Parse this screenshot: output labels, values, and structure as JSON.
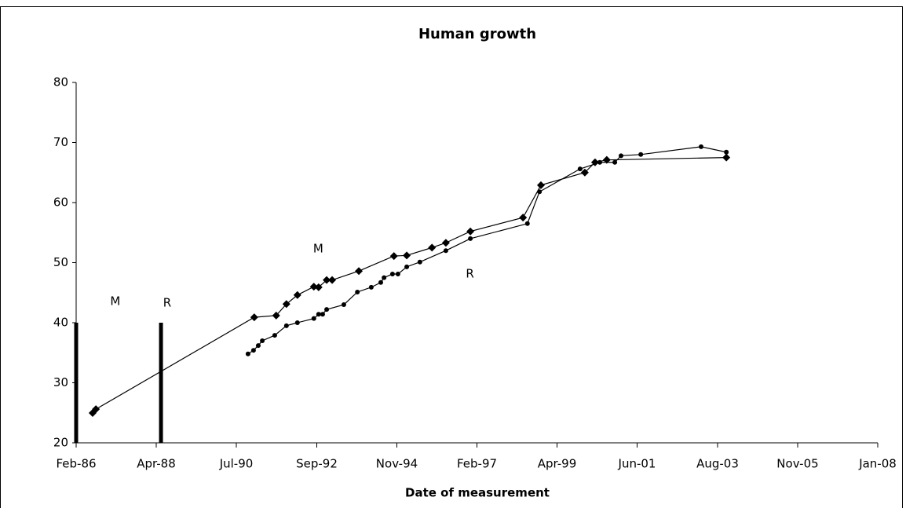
{
  "chart_data": {
    "type": "line",
    "title": "Human growth",
    "x_label": "Date of measurement",
    "xlim": [
      1986.08,
      2008.0
    ],
    "xticks": [
      {
        "value": 1986.08,
        "label": "Feb-86"
      },
      {
        "value": 1988.27,
        "label": "Apr-88"
      },
      {
        "value": 1990.46,
        "label": "Jul-90"
      },
      {
        "value": 1992.66,
        "label": "Sep-92"
      },
      {
        "value": 1994.85,
        "label": "Nov-94"
      },
      {
        "value": 1997.04,
        "label": "Feb-97"
      },
      {
        "value": 1999.23,
        "label": "Apr-99"
      },
      {
        "value": 2001.42,
        "label": "Jun-01"
      },
      {
        "value": 2003.62,
        "label": "Aug-03"
      },
      {
        "value": 2005.81,
        "label": "Nov-05"
      },
      {
        "value": 2008.0,
        "label": "Jan-08"
      }
    ],
    "ylim": [
      20,
      80
    ],
    "yticks": [
      20,
      30,
      40,
      50,
      60,
      70,
      80
    ],
    "series": [
      {
        "marker": "diamond",
        "color": "#000000",
        "x": [
          1986.53,
          1986.62,
          1990.95,
          1991.55,
          1991.83,
          1992.13,
          1992.58,
          1992.71,
          1992.93,
          1993.08,
          1993.81,
          1994.77,
          1995.12,
          1995.81,
          1996.19,
          1996.86,
          1998.3,
          1998.79,
          1999.99,
          2000.27,
          2000.59,
          2003.86
        ],
        "values": [
          24.97,
          25.6,
          40.9,
          41.2,
          43.1,
          44.6,
          46.0,
          45.9,
          47.1,
          47.1,
          48.6,
          51.1,
          51.2,
          52.5,
          53.3,
          55.2,
          57.5,
          62.9,
          65.0,
          66.7,
          67.1,
          67.5
        ]
      },
      {
        "marker": "circle",
        "color": "#000000",
        "x": [
          1990.78,
          1990.93,
          1991.06,
          1991.17,
          1991.51,
          1991.83,
          1992.13,
          1992.58,
          1992.71,
          1992.82,
          1992.93,
          1993.4,
          1993.77,
          1994.15,
          1994.41,
          1994.5,
          1994.73,
          1994.88,
          1995.12,
          1995.48,
          1996.19,
          1996.86,
          1998.42,
          1998.75,
          1999.86,
          2000.4,
          2000.81,
          2000.98,
          2001.52,
          2003.17,
          2003.86
        ],
        "values": [
          34.8,
          35.4,
          36.2,
          37.0,
          37.9,
          39.5,
          40.0,
          40.7,
          41.4,
          41.4,
          42.2,
          43.0,
          45.1,
          45.9,
          46.7,
          47.5,
          48.1,
          48.1,
          49.3,
          50.1,
          52.0,
          54.0,
          56.5,
          61.8,
          65.6,
          66.7,
          66.7,
          67.8,
          68.0,
          69.3,
          68.4
        ]
      }
    ],
    "vlines": [
      {
        "x": 1986.08,
        "y": 40
      },
      {
        "x": 1988.4,
        "y": 40
      }
    ],
    "annotations": [
      {
        "text": "M",
        "x": 1987.15,
        "y": 43.5
      },
      {
        "text": "R",
        "x": 1988.57,
        "y": 43.3
      },
      {
        "text": "M",
        "x": 1992.7,
        "y": 52.3
      },
      {
        "text": "R",
        "x": 1996.85,
        "y": 48.1
      }
    ]
  }
}
